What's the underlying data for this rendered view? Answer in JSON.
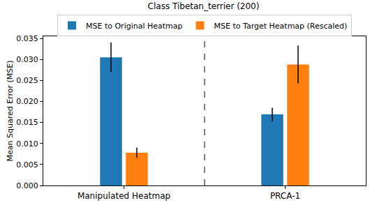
{
  "chart_data": {
    "type": "bar",
    "title": "Class Tibetan_terrier (200)",
    "y_label": "Mean Squared Error (MSE)",
    "categories": [
      "Manipulated Heatmap",
      "PRCA-1"
    ],
    "series": [
      {
        "name": "MSE to Original Heatmap",
        "color": "#1f77b4",
        "values": [
          0.0305,
          0.0169
        ],
        "errors": [
          0.0035,
          0.0016
        ]
      },
      {
        "name": "MSE to Target Heatmap (Rescaled)",
        "color": "#ff7f0e",
        "values": [
          0.0078,
          0.0288
        ],
        "errors": [
          0.0012,
          0.0045
        ]
      }
    ],
    "ylim": [
      0,
      0.0355
    ],
    "yticks": [
      {
        "value": 0,
        "label": "0.000"
      },
      {
        "value": 0.005,
        "label": "0.005"
      },
      {
        "value": 0.01,
        "label": "0.010"
      },
      {
        "value": 0.015,
        "label": "0.015"
      },
      {
        "value": 0.02,
        "label": "0.020"
      },
      {
        "value": 0.025,
        "label": "0.025"
      },
      {
        "value": 0.03,
        "label": "0.030"
      },
      {
        "value": 0.035,
        "label": "0.035"
      }
    ],
    "grid": false,
    "legend": "top"
  }
}
